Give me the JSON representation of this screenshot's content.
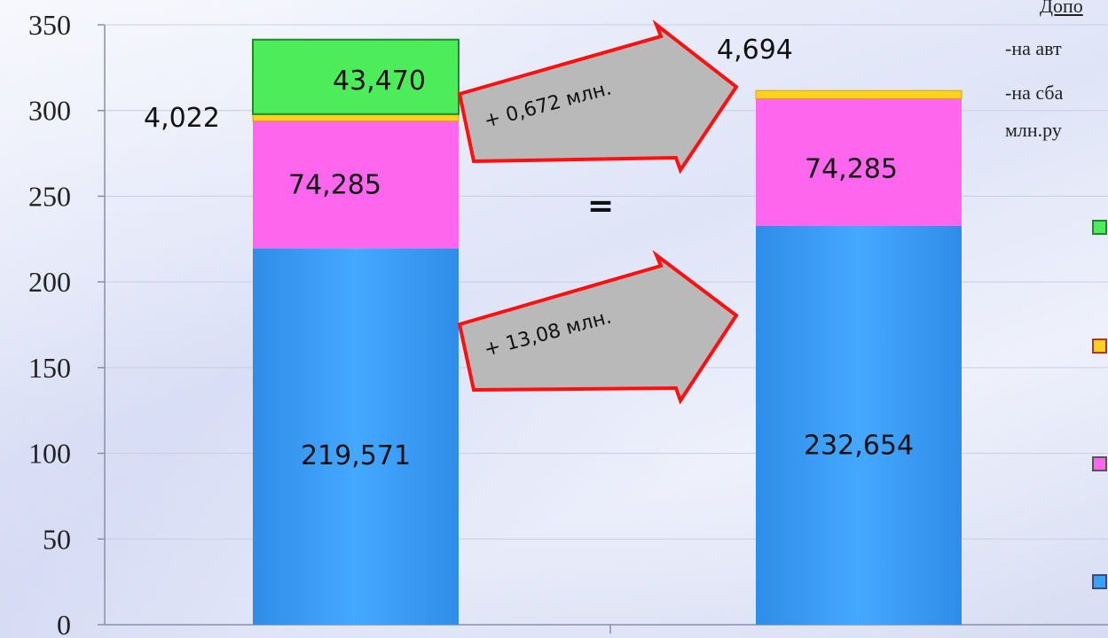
{
  "chart_data": {
    "type": "bar",
    "stacked": true,
    "categories": [
      "",
      ""
    ],
    "ylim": [
      0,
      350
    ],
    "yticks": [
      0,
      50,
      100,
      150,
      200,
      250,
      300,
      350
    ],
    "grid": true,
    "series": [
      {
        "values": [
          219.571,
          232.654
        ],
        "labels": [
          "219,571",
          "232,654"
        ],
        "color": "#3aa0ff"
      },
      {
        "values": [
          74.285,
          74.285
        ],
        "labels": [
          "74,285",
          "74,285"
        ],
        "color": "#ff66ee"
      },
      {
        "values": [
          4.022,
          4.694
        ],
        "labels": [
          "4,022",
          "4,694"
        ],
        "color": "#ffd21f"
      },
      {
        "values": [
          43.47,
          0
        ],
        "labels": [
          "43,470",
          ""
        ],
        "color": "#4cec5a"
      }
    ],
    "annotations": {
      "arrow_top": "+ 0,672 млн.",
      "arrow_bottom": "+ 13,08 млн.",
      "equals": "="
    }
  },
  "notes": [
    "Допо",
    "-на авт",
    "-на сба",
    "млн.ру"
  ],
  "legend": [
    {
      "color": "#4cec5a",
      "border": "#1e8a2a"
    },
    {
      "color": "#ffd21f",
      "border": "#c0301a"
    },
    {
      "color": "#ff66ee",
      "border": "#555555"
    },
    {
      "color": "#3aa0ff",
      "border": "#3a4a80"
    }
  ]
}
